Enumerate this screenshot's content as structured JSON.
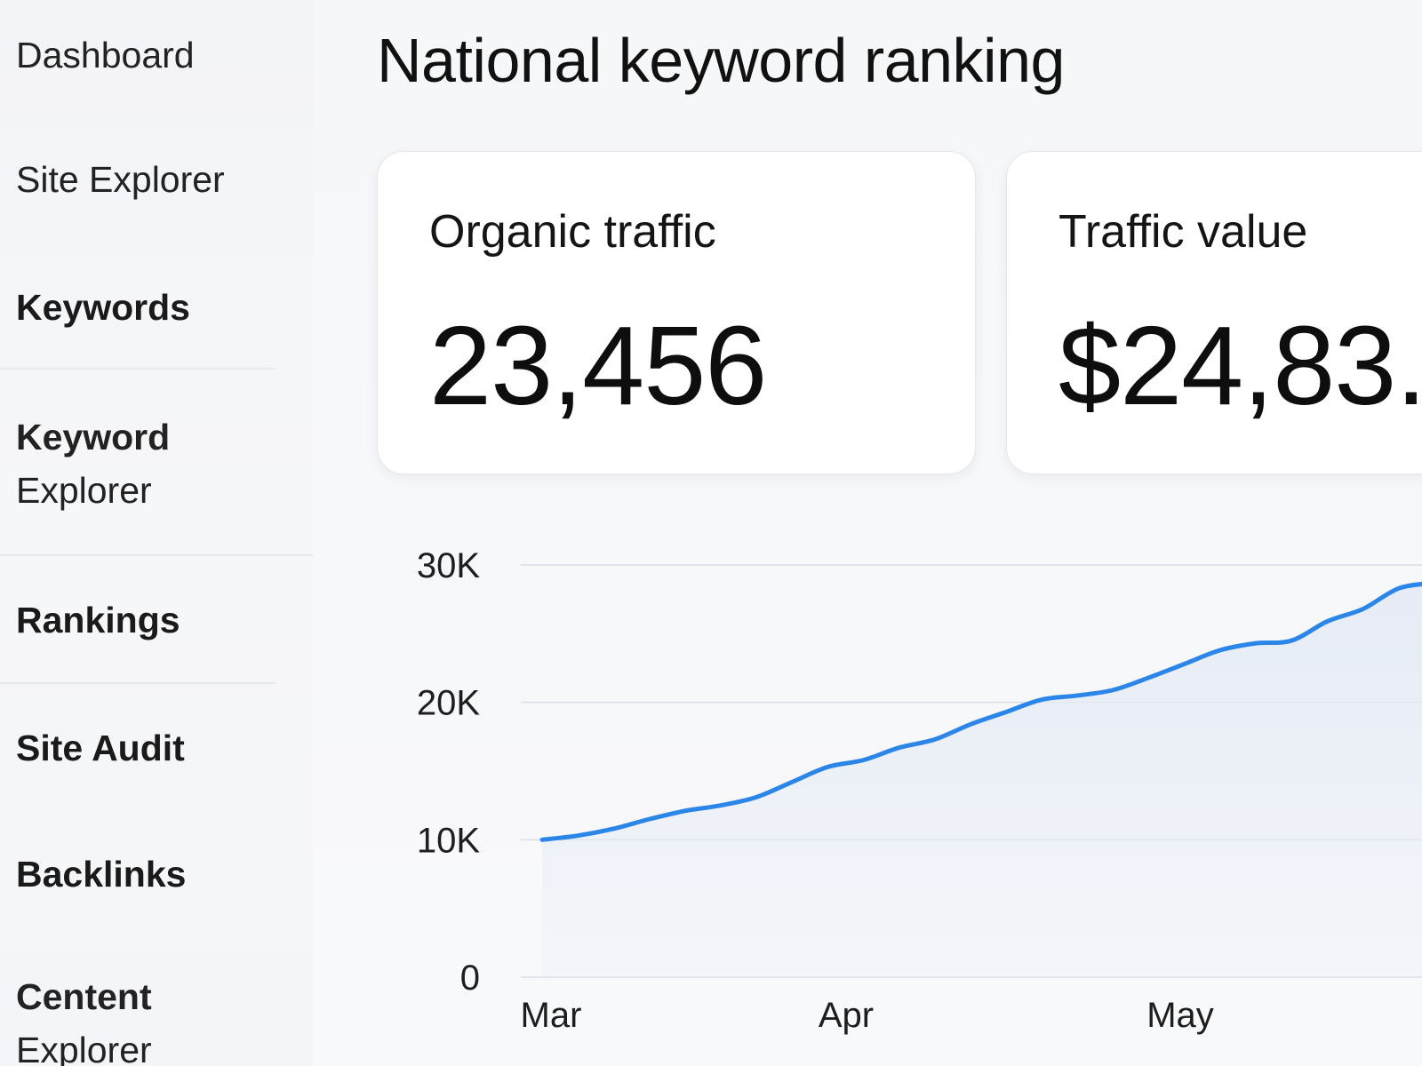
{
  "sidebar": {
    "items": [
      {
        "label": "Dashboard",
        "bold": false
      },
      {
        "label": "Site Explorer",
        "bold": false
      },
      {
        "label": "Keywords",
        "bold": true
      },
      {
        "label_lines": [
          "Keyword",
          "Explorer"
        ],
        "bold": true
      },
      {
        "label": "Rankings",
        "bold": true
      },
      {
        "label": "Site Audit",
        "bold": true
      },
      {
        "label": "Backlinks",
        "bold": true
      },
      {
        "label_lines": [
          "Centent",
          "Explorer"
        ],
        "bold": true
      }
    ]
  },
  "header": {
    "title": "National keyword ranking"
  },
  "cards": [
    {
      "label": "Organic traffic",
      "value": "23,456"
    },
    {
      "label": "Traffic value",
      "value": "$24,83."
    }
  ],
  "colors": {
    "line": "#2b86e8",
    "area": "#e6ecf6",
    "grid": "#d9dde4"
  },
  "chart_data": {
    "type": "area",
    "x_labels": [
      "Mar",
      "Apr",
      "May"
    ],
    "y_ticks": [
      "0",
      "10K",
      "20K",
      "30K"
    ],
    "ylim": [
      0,
      30000
    ],
    "grid": true,
    "series": [
      {
        "values": [
          10000,
          10300,
          10800,
          11500,
          12100,
          12500,
          13100,
          14200,
          15300,
          15800,
          16700,
          17300,
          18400,
          19300,
          20200,
          20500,
          20900,
          21800,
          22800,
          23800,
          24300,
          24500,
          25900,
          26800,
          28300,
          28700
        ]
      }
    ]
  }
}
